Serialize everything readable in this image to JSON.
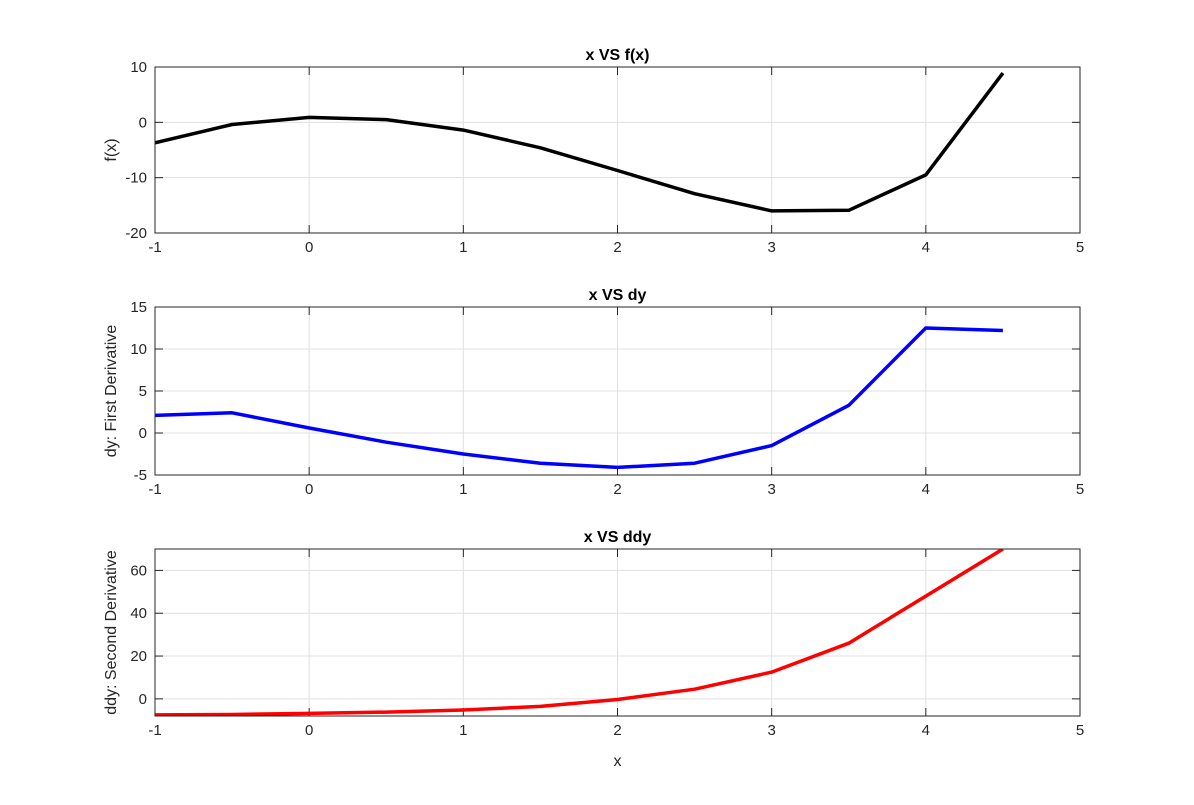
{
  "chart_data": [
    {
      "type": "line",
      "title": "x VS f(x)",
      "xlabel": "",
      "ylabel": "f(x)",
      "xlim": [
        -1,
        5
      ],
      "ylim": [
        -20,
        10
      ],
      "xticks": [
        "-1",
        "0",
        "1",
        "2",
        "3",
        "4",
        "5"
      ],
      "yticks": [
        "-20",
        "-10",
        "0",
        "10"
      ],
      "grid": true,
      "color": "#000000",
      "x": [
        -1,
        -0.5,
        0,
        0.5,
        1,
        1.5,
        2,
        2.5,
        3,
        3.5,
        4,
        4.5
      ],
      "y": [
        -3.7,
        -0.4,
        0.9,
        0.5,
        -1.4,
        -4.6,
        -8.7,
        -12.9,
        -16.0,
        -15.9,
        -9.5,
        8.9
      ]
    },
    {
      "type": "line",
      "title": "x VS dy",
      "xlabel": "",
      "ylabel": "dy: First Derivative",
      "xlim": [
        -1,
        5
      ],
      "ylim": [
        -5,
        15
      ],
      "xticks": [
        "-1",
        "0",
        "1",
        "2",
        "3",
        "4",
        "5"
      ],
      "yticks": [
        "-5",
        "0",
        "5",
        "10",
        "15"
      ],
      "grid": true,
      "color": "#0000ff",
      "x": [
        -1,
        -0.5,
        0,
        0.5,
        1,
        1.5,
        2,
        2.5,
        3,
        3.5,
        4,
        4.5
      ],
      "y": [
        2.1,
        2.4,
        0.6,
        -1.1,
        -2.5,
        -3.6,
        -4.1,
        -3.6,
        -1.5,
        3.3,
        12.5,
        12.2
      ]
    },
    {
      "type": "line",
      "title": "x VS ddy",
      "xlabel": "x",
      "ylabel": "ddy: Second Derivative",
      "xlim": [
        -1,
        5
      ],
      "ylim": [
        -8,
        70
      ],
      "xticks": [
        "-1",
        "0",
        "1",
        "2",
        "3",
        "4",
        "5"
      ],
      "yticks": [
        "0",
        "20",
        "40",
        "60"
      ],
      "grid": true,
      "color": "#ff0000",
      "x": [
        -1,
        -0.5,
        0,
        0.5,
        1,
        1.5,
        2,
        2.5,
        3,
        3.5,
        4,
        4.5
      ],
      "y": [
        -7.5,
        -7.3,
        -6.8,
        -6.2,
        -5.2,
        -3.5,
        -0.3,
        4.5,
        12.5,
        26.0,
        48.0,
        70.0
      ]
    }
  ]
}
